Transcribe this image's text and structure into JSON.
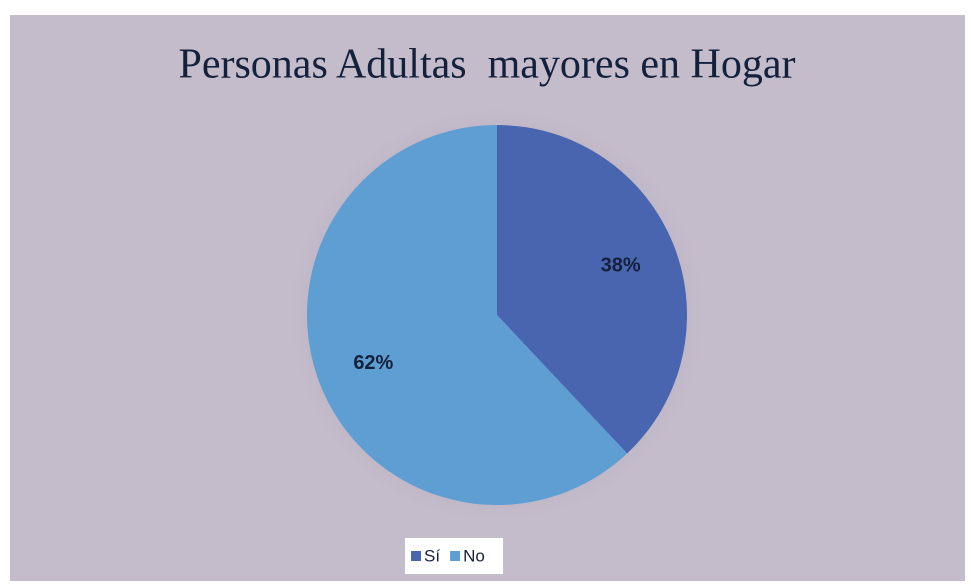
{
  "chart_data": {
    "type": "pie",
    "title": "Personas Adultas  mayores en Hogar",
    "categories": [
      "Sí",
      "No"
    ],
    "values": [
      38,
      62
    ],
    "value_labels": [
      "38%",
      "62%"
    ],
    "colors": [
      "#4a65b0",
      "#5f9ed3"
    ],
    "legend": "bottom"
  }
}
